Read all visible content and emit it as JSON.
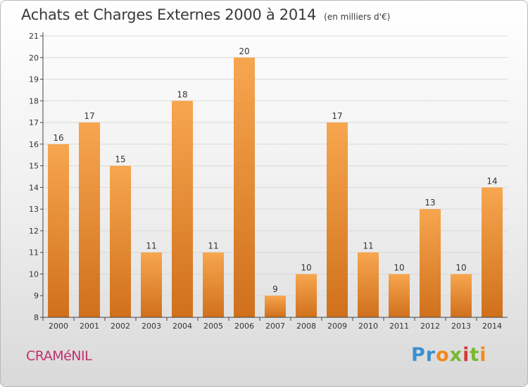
{
  "header": {
    "title": "Achats et Charges Externes 2000 à 2014",
    "unit": "(en milliers d'€)"
  },
  "footer": {
    "commune": "CRAMéNIL",
    "logo": "Proxiti"
  },
  "colors": {
    "bar_light": "#f7a64f",
    "bar_dark": "#d0701c",
    "axis": "#444444",
    "grid": "#d9d9d9",
    "commune": "#c0306e"
  },
  "chart_data": {
    "type": "bar",
    "categories": [
      "2000",
      "2001",
      "2002",
      "2003",
      "2004",
      "2005",
      "2006",
      "2007",
      "2008",
      "2009",
      "2010",
      "2011",
      "2012",
      "2013",
      "2014"
    ],
    "values": [
      16,
      17,
      15,
      11,
      18,
      11,
      20,
      9,
      10,
      17,
      11,
      10,
      13,
      10,
      14
    ],
    "ylim": [
      8,
      21
    ],
    "yticks": [
      8,
      9,
      10,
      11,
      12,
      13,
      14,
      15,
      16,
      17,
      18,
      19,
      20,
      21
    ],
    "grid": true,
    "data_labels": true
  }
}
